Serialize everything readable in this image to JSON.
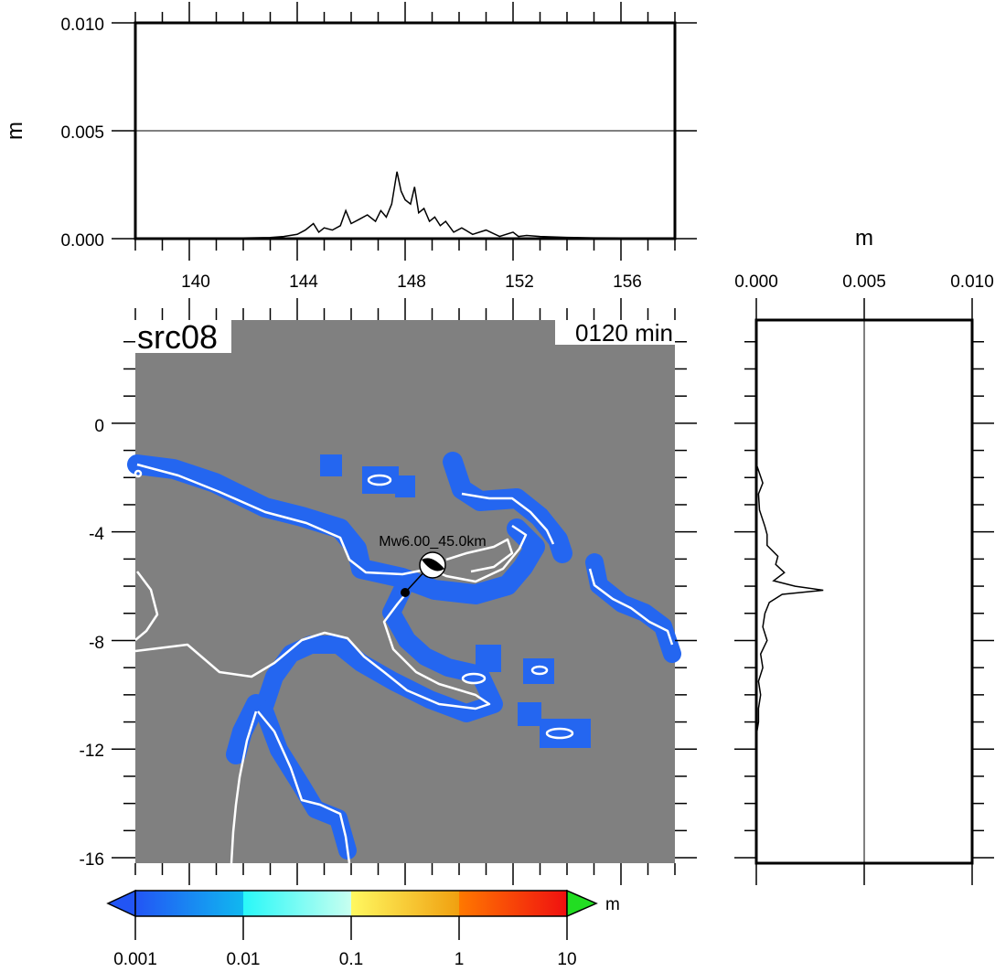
{
  "title_label": "src08",
  "time_label": "0120 min",
  "event_label": "Mw6.00_45.0km",
  "colors": {
    "land": "#808080",
    "wave": "#2466f0",
    "coast": "#ffffff",
    "frame": "#000000"
  },
  "map": {
    "lon_range": [
      138,
      158
    ],
    "lat_range": [
      -16.2,
      3.8
    ],
    "lon_ticks": [
      "140",
      "144",
      "148",
      "152",
      "156"
    ],
    "lat_ticks": [
      "0",
      "-4",
      "-8",
      "-12",
      "-16"
    ]
  },
  "top_profile": {
    "ylabel": "m",
    "ylim": [
      0,
      0.01
    ],
    "yticks": [
      "0.000",
      "0.005",
      "0.010"
    ],
    "reference_line": 0.005,
    "x": [
      138.0,
      141.0,
      142.0,
      143.0,
      143.5,
      144.0,
      144.3,
      144.6,
      144.8,
      145.0,
      145.3,
      145.6,
      145.8,
      146.0,
      146.3,
      146.6,
      146.9,
      147.1,
      147.3,
      147.5,
      147.7,
      147.85,
      148.0,
      148.2,
      148.35,
      148.5,
      148.7,
      148.9,
      149.1,
      149.3,
      149.5,
      149.8,
      150.1,
      150.5,
      151.0,
      151.5,
      152.0,
      152.2,
      152.5,
      153.0,
      154.0,
      155.0,
      156.0,
      157.0,
      157.6
    ],
    "y": [
      0.0,
      0.0,
      3e-05,
      5e-05,
      0.0001,
      0.0002,
      0.0004,
      0.0007,
      0.0003,
      0.0005,
      0.0004,
      0.0006,
      0.0013,
      0.0007,
      0.0009,
      0.0011,
      0.0008,
      0.0013,
      0.001,
      0.0016,
      0.0031,
      0.0022,
      0.0018,
      0.0016,
      0.0024,
      0.0012,
      0.0014,
      0.0008,
      0.001,
      0.0006,
      0.0008,
      0.0003,
      0.0005,
      0.0002,
      0.0004,
      0.0001,
      0.0003,
      0.0001,
      0.00015,
      0.0001,
      6e-05,
      4e-05,
      3e-05,
      2e-05,
      0.0
    ]
  },
  "side_profile": {
    "xlabel": "m",
    "xlim": [
      0,
      0.01
    ],
    "xticks": [
      "0.000",
      "0.005",
      "0.010"
    ],
    "reference_line": 0.005,
    "lat": [
      -1.5,
      -2.2,
      -2.6,
      -3.2,
      -3.8,
      -4.1,
      -4.5,
      -4.9,
      -5.2,
      -5.5,
      -5.8,
      -6.0,
      -6.15,
      -6.3,
      -6.6,
      -7.0,
      -7.5,
      -8.0,
      -8.5,
      -9.0,
      -9.5,
      -10.0,
      -10.5,
      -11.0,
      -11.5
    ],
    "amp": [
      0.0,
      0.0003,
      0.0001,
      0.00015,
      0.0004,
      0.0005,
      0.0005,
      0.001,
      0.0009,
      0.0013,
      0.0008,
      0.0018,
      0.0031,
      0.0012,
      0.0006,
      0.0004,
      0.0003,
      0.0005,
      0.0002,
      0.0003,
      0.0001,
      0.0002,
      0.0001,
      0.0001,
      0.0
    ]
  },
  "colorbar": {
    "unit": "m",
    "labels": [
      "0.001",
      "0.01",
      "0.1",
      "1",
      "10"
    ]
  }
}
